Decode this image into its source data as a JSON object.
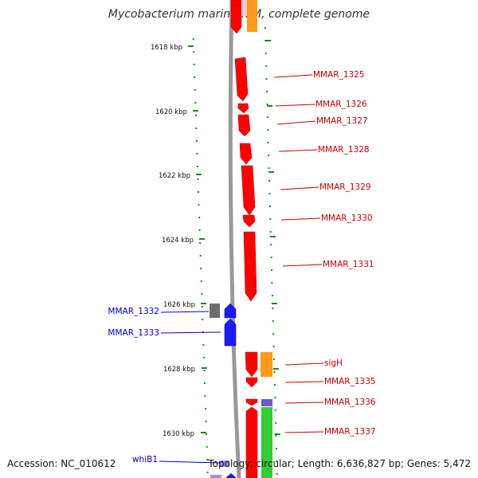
{
  "title": "Mycobacterium marinum M, complete genome",
  "footer": {
    "accession": "Accession: NC_010612",
    "summary": "Topology: circular; Length: 6,636,827 bp; Genes: 5,472"
  },
  "colors": {
    "backbone": "#999999",
    "tick": "#1a8a1a",
    "red_gene": "#ff0000",
    "red_label": "#cc0000",
    "blue_gene": "#1a1aff",
    "blue_label": "#0000cc",
    "orange_gene": "#ff9a1a",
    "green_gene": "#33cc33",
    "purple_gene": "#6a5acd",
    "gray_gene": "#6e6e6e",
    "pink_gene": "#ffcccc"
  },
  "scale_ticks": [
    {
      "label": "1618 kbp"
    },
    {
      "label": "1620 kbp"
    },
    {
      "label": "1622 kbp"
    },
    {
      "label": "1624 kbp"
    },
    {
      "label": "1626 kbp"
    },
    {
      "label": "1628 kbp"
    },
    {
      "label": "1630 kbp"
    }
  ],
  "gene_labels": [
    {
      "name": "MMAR_1325",
      "side": "right"
    },
    {
      "name": "MMAR_1326",
      "side": "right"
    },
    {
      "name": "MMAR_1327",
      "side": "right"
    },
    {
      "name": "MMAR_1328",
      "side": "right"
    },
    {
      "name": "MMAR_1329",
      "side": "right"
    },
    {
      "name": "MMAR_1330",
      "side": "right"
    },
    {
      "name": "MMAR_1331",
      "side": "right"
    },
    {
      "name": "MMAR_1332",
      "side": "left"
    },
    {
      "name": "MMAR_1333",
      "side": "left"
    },
    {
      "name": "sigH",
      "side": "right"
    },
    {
      "name": "MMAR_1335",
      "side": "right"
    },
    {
      "name": "MMAR_1336",
      "side": "right"
    },
    {
      "name": "MMAR_1337",
      "side": "right"
    },
    {
      "name": "whiB1",
      "side": "left"
    }
  ]
}
